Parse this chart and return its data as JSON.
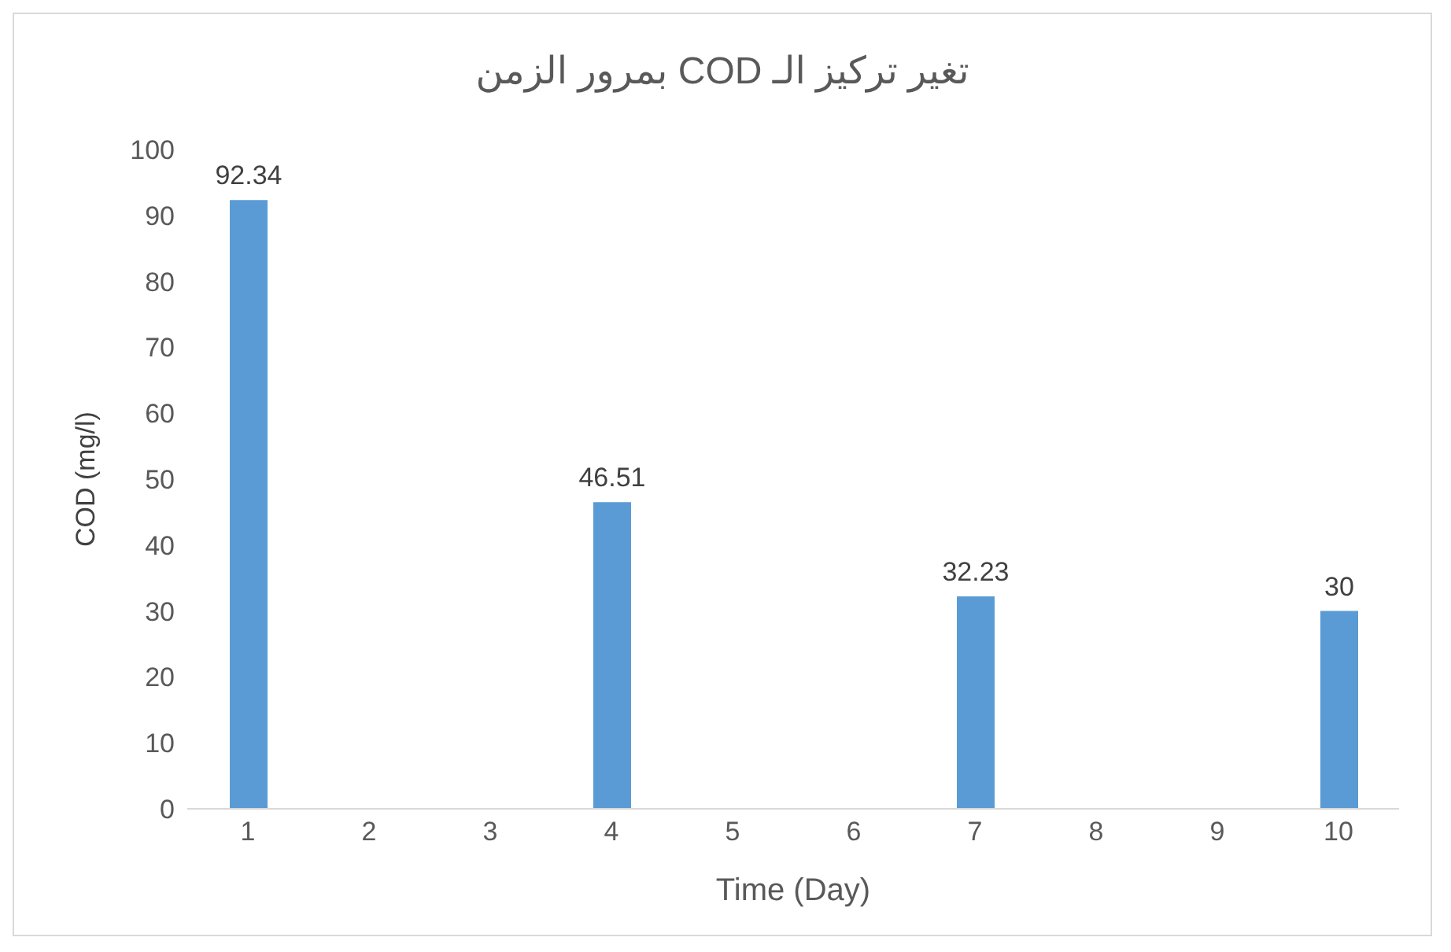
{
  "chart_data": {
    "type": "bar",
    "title": "تغير تركيز الـ COD بمرور الزمن",
    "xlabel": "Time (Day)",
    "ylabel": "COD (mg/l)",
    "categories": [
      "1",
      "2",
      "3",
      "4",
      "5",
      "6",
      "7",
      "8",
      "9",
      "10"
    ],
    "values": [
      92.34,
      null,
      null,
      46.51,
      null,
      null,
      32.23,
      null,
      null,
      30
    ],
    "color": "#5b9bd5",
    "ylim": [
      0,
      100
    ],
    "yticks": [
      0,
      10,
      20,
      30,
      40,
      50,
      60,
      70,
      80,
      90,
      100
    ],
    "grid": false,
    "data_labels": true
  }
}
